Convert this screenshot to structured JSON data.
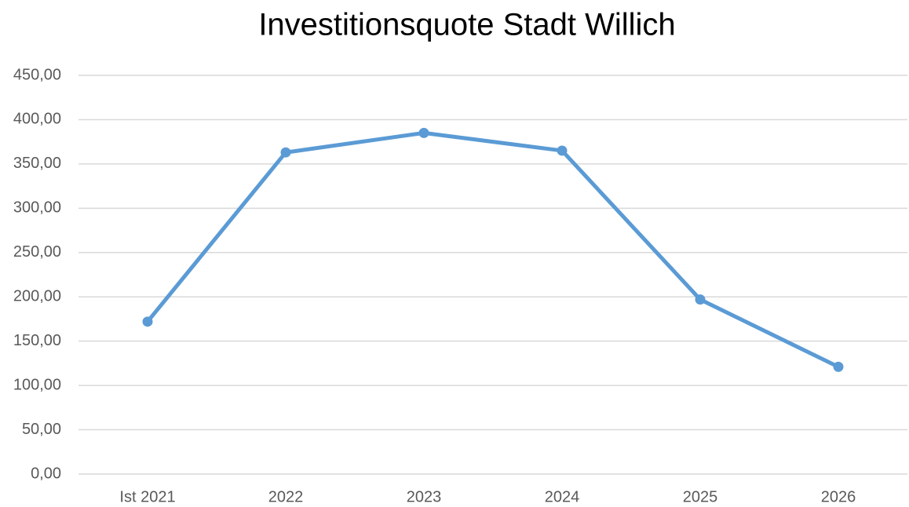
{
  "chart_data": {
    "type": "line",
    "title": "Investitionsquote Stadt Willich",
    "categories": [
      "Ist 2021",
      "2022",
      "2023",
      "2024",
      "2025",
      "2026"
    ],
    "series": [
      {
        "name": "Investitionsquote",
        "color": "#5b9bd5",
        "values": [
          172,
          363,
          385,
          365,
          197,
          121
        ]
      }
    ],
    "ylim": [
      0,
      450
    ],
    "yticks": [
      {
        "value": 0,
        "label": "0,00"
      },
      {
        "value": 50,
        "label": "50,00"
      },
      {
        "value": 100,
        "label": "100,00"
      },
      {
        "value": 150,
        "label": "150,00"
      },
      {
        "value": 200,
        "label": "200,00"
      },
      {
        "value": 250,
        "label": "250,00"
      },
      {
        "value": 300,
        "label": "300,00"
      },
      {
        "value": 350,
        "label": "350,00"
      },
      {
        "value": 400,
        "label": "400,00"
      },
      {
        "value": 450,
        "label": "450,00"
      }
    ],
    "grid": true,
    "legend": false
  }
}
